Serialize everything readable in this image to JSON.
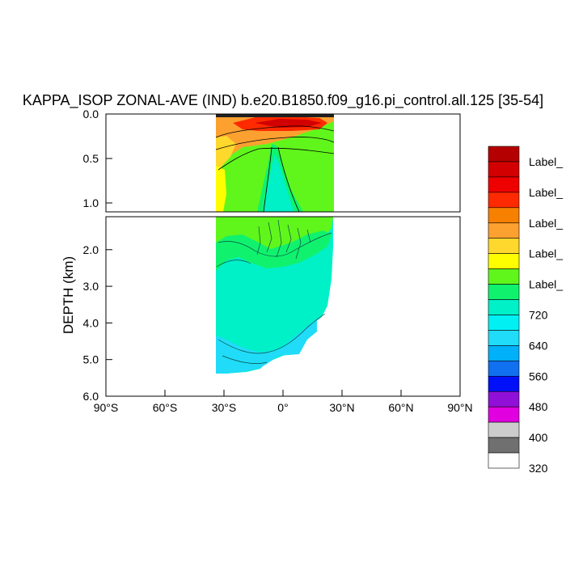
{
  "chart_data": {
    "type": "heatmap",
    "title": "KAPPA_ISOP ZONAL-AVE (IND) b.e20.B1850.f09_g16.pi_control.all.125 [35-54]",
    "ylabel": "DEPTH (km)",
    "xlabel": "",
    "x_ticks": [
      "90°S",
      "60°S",
      "30°S",
      "0°",
      "30°N",
      "60°N",
      "90°N"
    ],
    "x_tick_values": [
      -90,
      -60,
      -30,
      0,
      30,
      60,
      90
    ],
    "xlim": [
      -90,
      90
    ],
    "upper_panel": {
      "ylim": [
        0,
        1.1
      ],
      "y_ticks": [
        "0.0",
        "0.5",
        "1.0"
      ],
      "y_tick_values": [
        0,
        0.5,
        1.0
      ]
    },
    "lower_panel": {
      "ylim": [
        1.1,
        6.0
      ],
      "y_ticks": [
        "2.0",
        "3.0",
        "4.0",
        "5.0",
        "6.0"
      ],
      "y_tick_values": [
        2,
        3,
        4,
        5,
        6
      ]
    },
    "colorbar": {
      "labels": [
        "Label_",
        "Label_",
        "Label_",
        "Label_",
        "Label_",
        "720",
        "640",
        "560",
        "480",
        "400",
        "320"
      ],
      "colors": [
        "#b40000",
        "#d20000",
        "#ef0000",
        "#ff2a00",
        "#f88000",
        "#fca030",
        "#fed82c",
        "#fefe00",
        "#60f61c",
        "#10f26e",
        "#00f0c8",
        "#00f0f4",
        "#20dcf8",
        "#00b0f8",
        "#1070f0",
        "#0010f8",
        "#9010d8",
        "#e000e0",
        "#cdcdcd",
        "#707070",
        "#ffffff"
      ]
    },
    "legend_placement": "right",
    "grid": false
  }
}
